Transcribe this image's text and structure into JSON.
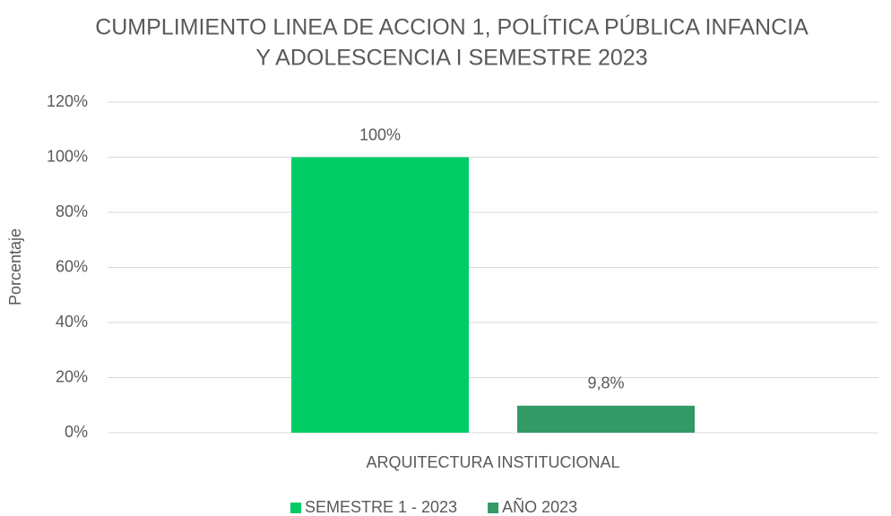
{
  "chart_data": {
    "type": "bar",
    "title": [
      "CUMPLIMIENTO LINEA DE ACCION 1, POLÍTICA PÚBLICA INFANCIA",
      "Y ADOLESCENCIA I SEMESTRE 2023"
    ],
    "y_label": "Porcentaje",
    "categories": [
      "ARQUITECTURA INSTITUCIONAL"
    ],
    "series": [
      {
        "name": "SEMESTRE 1 - 2023",
        "color": "#00CC66",
        "values": [
          100
        ],
        "value_labels": [
          "100%"
        ]
      },
      {
        "name": "AÑO 2023",
        "color": "#339966",
        "values": [
          9.8
        ],
        "value_labels": [
          "9,8%"
        ]
      }
    ],
    "ylim": [
      0,
      120
    ],
    "yticks": [
      {
        "value": 0,
        "label": "0%"
      },
      {
        "value": 20,
        "label": "20%"
      },
      {
        "value": 40,
        "label": "40%"
      },
      {
        "value": 60,
        "label": "60%"
      },
      {
        "value": 80,
        "label": "80%"
      },
      {
        "value": 100,
        "label": "100%"
      },
      {
        "value": 120,
        "label": "120%"
      }
    ],
    "grid": true,
    "legend": "bottom"
  }
}
